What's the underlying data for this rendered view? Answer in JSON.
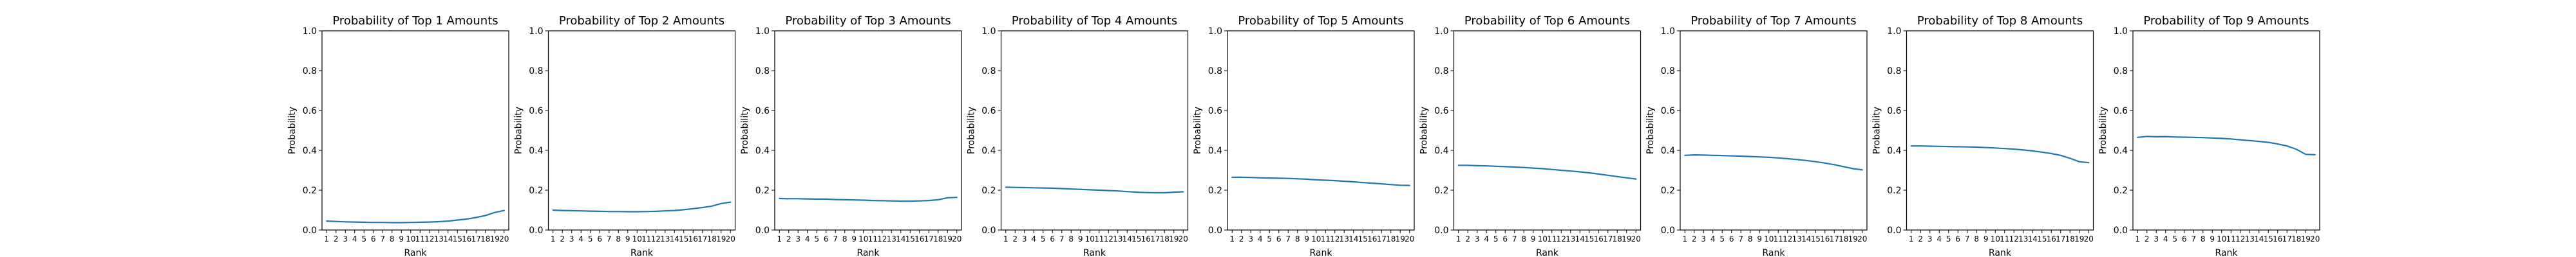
{
  "chart_data": [
    {
      "type": "line",
      "title": "Probability of Top 1 Amounts",
      "xlabel": "Rank",
      "ylabel": "Probability",
      "ylim": [
        0,
        1
      ],
      "yticks": [
        "0.0",
        "0.2",
        "0.4",
        "0.6",
        "0.8",
        "1.0"
      ],
      "categories": [
        "1",
        "2",
        "3",
        "4",
        "5",
        "6",
        "7",
        "8",
        "9",
        "10",
        "11",
        "12",
        "13",
        "14",
        "15",
        "16",
        "17",
        "18",
        "19",
        "20"
      ],
      "values": [
        0.045,
        0.043,
        0.041,
        0.04,
        0.039,
        0.038,
        0.038,
        0.037,
        0.037,
        0.038,
        0.039,
        0.04,
        0.042,
        0.045,
        0.05,
        0.055,
        0.063,
        0.073,
        0.088,
        0.098
      ]
    },
    {
      "type": "line",
      "title": "Probability of Top 2 Amounts",
      "xlabel": "Rank",
      "ylabel": "Probability",
      "ylim": [
        0,
        1
      ],
      "yticks": [
        "0.0",
        "0.2",
        "0.4",
        "0.6",
        "0.8",
        "1.0"
      ],
      "categories": [
        "1",
        "2",
        "3",
        "4",
        "5",
        "6",
        "7",
        "8",
        "9",
        "10",
        "11",
        "12",
        "13",
        "14",
        "15",
        "16",
        "17",
        "18",
        "19",
        "20"
      ],
      "values": [
        0.1,
        0.098,
        0.097,
        0.096,
        0.095,
        0.094,
        0.093,
        0.093,
        0.092,
        0.092,
        0.093,
        0.094,
        0.096,
        0.098,
        0.102,
        0.107,
        0.113,
        0.12,
        0.133,
        0.14
      ]
    },
    {
      "type": "line",
      "title": "Probability of Top 3 Amounts",
      "xlabel": "Rank",
      "ylabel": "Probability",
      "ylim": [
        0,
        1
      ],
      "yticks": [
        "0.0",
        "0.2",
        "0.4",
        "0.6",
        "0.8",
        "1.0"
      ],
      "categories": [
        "1",
        "2",
        "3",
        "4",
        "5",
        "6",
        "7",
        "8",
        "9",
        "10",
        "11",
        "12",
        "13",
        "14",
        "15",
        "16",
        "17",
        "18",
        "19",
        "20"
      ],
      "values": [
        0.158,
        0.157,
        0.157,
        0.156,
        0.155,
        0.155,
        0.153,
        0.152,
        0.151,
        0.15,
        0.148,
        0.147,
        0.146,
        0.145,
        0.145,
        0.146,
        0.148,
        0.152,
        0.162,
        0.164
      ]
    },
    {
      "type": "line",
      "title": "Probability of Top 4 Amounts",
      "xlabel": "Rank",
      "ylabel": "Probability",
      "ylim": [
        0,
        1
      ],
      "yticks": [
        "0.0",
        "0.2",
        "0.4",
        "0.6",
        "0.8",
        "1.0"
      ],
      "categories": [
        "1",
        "2",
        "3",
        "4",
        "5",
        "6",
        "7",
        "8",
        "9",
        "10",
        "11",
        "12",
        "13",
        "14",
        "15",
        "16",
        "17",
        "18",
        "19",
        "20"
      ],
      "values": [
        0.215,
        0.214,
        0.213,
        0.212,
        0.211,
        0.21,
        0.208,
        0.206,
        0.204,
        0.202,
        0.2,
        0.198,
        0.196,
        0.193,
        0.19,
        0.188,
        0.187,
        0.187,
        0.19,
        0.192
      ]
    },
    {
      "type": "line",
      "title": "Probability of Top 5 Amounts",
      "xlabel": "Rank",
      "ylabel": "Probability",
      "ylim": [
        0,
        1
      ],
      "yticks": [
        "0.0",
        "0.2",
        "0.4",
        "0.6",
        "0.8",
        "1.0"
      ],
      "categories": [
        "1",
        "2",
        "3",
        "4",
        "5",
        "6",
        "7",
        "8",
        "9",
        "10",
        "11",
        "12",
        "13",
        "14",
        "15",
        "16",
        "17",
        "18",
        "19",
        "20"
      ],
      "values": [
        0.265,
        0.265,
        0.264,
        0.262,
        0.261,
        0.26,
        0.259,
        0.257,
        0.255,
        0.252,
        0.25,
        0.248,
        0.245,
        0.242,
        0.238,
        0.235,
        0.232,
        0.228,
        0.225,
        0.224
      ]
    },
    {
      "type": "line",
      "title": "Probability of Top 6 Amounts",
      "xlabel": "Rank",
      "ylabel": "Probability",
      "ylim": [
        0,
        1
      ],
      "yticks": [
        "0.0",
        "0.2",
        "0.4",
        "0.6",
        "0.8",
        "1.0"
      ],
      "categories": [
        "1",
        "2",
        "3",
        "4",
        "5",
        "6",
        "7",
        "8",
        "9",
        "10",
        "11",
        "12",
        "13",
        "14",
        "15",
        "16",
        "17",
        "18",
        "19",
        "20"
      ],
      "values": [
        0.325,
        0.325,
        0.323,
        0.322,
        0.32,
        0.318,
        0.316,
        0.314,
        0.311,
        0.308,
        0.304,
        0.3,
        0.296,
        0.292,
        0.287,
        0.281,
        0.275,
        0.268,
        0.262,
        0.256
      ]
    },
    {
      "type": "line",
      "title": "Probability of Top 7 Amounts",
      "xlabel": "Rank",
      "ylabel": "Probability",
      "ylim": [
        0,
        1
      ],
      "yticks": [
        "0.0",
        "0.2",
        "0.4",
        "0.6",
        "0.8",
        "1.0"
      ],
      "categories": [
        "1",
        "2",
        "3",
        "4",
        "5",
        "6",
        "7",
        "8",
        "9",
        "10",
        "11",
        "12",
        "13",
        "14",
        "15",
        "16",
        "17",
        "18",
        "19",
        "20"
      ],
      "values": [
        0.375,
        0.377,
        0.376,
        0.375,
        0.374,
        0.372,
        0.371,
        0.369,
        0.367,
        0.365,
        0.362,
        0.358,
        0.354,
        0.349,
        0.343,
        0.336,
        0.328,
        0.318,
        0.308,
        0.302
      ]
    },
    {
      "type": "line",
      "title": "Probability of Top 8 Amounts",
      "xlabel": "Rank",
      "ylabel": "Probability",
      "ylim": [
        0,
        1
      ],
      "yticks": [
        "0.0",
        "0.2",
        "0.4",
        "0.6",
        "0.8",
        "1.0"
      ],
      "categories": [
        "1",
        "2",
        "3",
        "4",
        "5",
        "6",
        "7",
        "8",
        "9",
        "10",
        "11",
        "12",
        "13",
        "14",
        "15",
        "16",
        "17",
        "18",
        "19",
        "20"
      ],
      "values": [
        0.422,
        0.422,
        0.421,
        0.42,
        0.419,
        0.418,
        0.417,
        0.416,
        0.414,
        0.412,
        0.409,
        0.406,
        0.402,
        0.397,
        0.391,
        0.384,
        0.375,
        0.36,
        0.343,
        0.338
      ]
    },
    {
      "type": "line",
      "title": "Probability of Top 9 Amounts",
      "xlabel": "Rank",
      "ylabel": "Probability",
      "ylim": [
        0,
        1
      ],
      "yticks": [
        "0.0",
        "0.2",
        "0.4",
        "0.6",
        "0.8",
        "1.0"
      ],
      "categories": [
        "1",
        "2",
        "3",
        "4",
        "5",
        "6",
        "7",
        "8",
        "9",
        "10",
        "11",
        "12",
        "13",
        "14",
        "15",
        "16",
        "17",
        "18",
        "19",
        "20"
      ],
      "values": [
        0.465,
        0.47,
        0.468,
        0.469,
        0.467,
        0.466,
        0.465,
        0.464,
        0.462,
        0.46,
        0.457,
        0.453,
        0.449,
        0.445,
        0.44,
        0.432,
        0.422,
        0.405,
        0.38,
        0.378
      ]
    }
  ],
  "colors": {
    "series": "#1f77b4",
    "axes": "#000000"
  }
}
